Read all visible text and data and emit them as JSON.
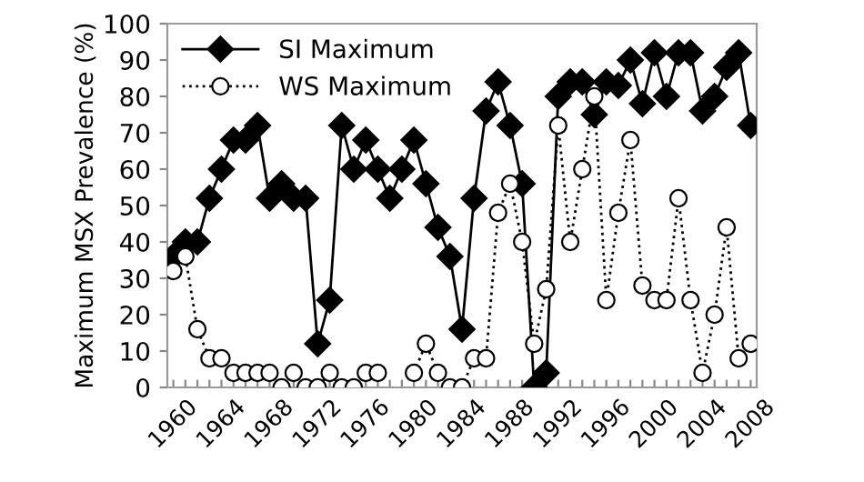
{
  "chart_data": {
    "type": "line",
    "ylabel": "Maximum MSX Prevalence (%)",
    "x": [
      1960,
      1961,
      1962,
      1963,
      1964,
      1965,
      1966,
      1967,
      1968,
      1969,
      1970,
      1971,
      1972,
      1973,
      1974,
      1975,
      1976,
      1977,
      1978,
      1979,
      1980,
      1981,
      1982,
      1983,
      1984,
      1985,
      1986,
      1987,
      1988,
      1989,
      1990,
      1991,
      1992,
      1993,
      1994,
      1995,
      1996,
      1997,
      1998,
      1999,
      2000,
      2001,
      2002,
      2003,
      2004,
      2005,
      2006,
      2007,
      2008
    ],
    "series": [
      {
        "name": "SI Maximum",
        "color": "#000000",
        "marker": "diamond",
        "line_style": "solid",
        "values": [
          36,
          40,
          40,
          52,
          60,
          68,
          68,
          72,
          52,
          56,
          52,
          52,
          12,
          24,
          72,
          60,
          68,
          60,
          52,
          60,
          68,
          56,
          44,
          36,
          16,
          52,
          76,
          84,
          72,
          56,
          0,
          4,
          80,
          84,
          84,
          75,
          84,
          83,
          90,
          78,
          92,
          80,
          92,
          92,
          76,
          80,
          88,
          92,
          72
        ]
      },
      {
        "name": "WS Maximum",
        "color": "#000000",
        "marker": "circle",
        "line_style": "dotted",
        "values": [
          32,
          36,
          16,
          8,
          8,
          4,
          4,
          4,
          4,
          0,
          4,
          0,
          0,
          4,
          0,
          0,
          4,
          4,
          null,
          null,
          4,
          12,
          4,
          0,
          0,
          8,
          8,
          48,
          56,
          40,
          12,
          27,
          72,
          40,
          60,
          80,
          24,
          48,
          68,
          28,
          24,
          24,
          52,
          24,
          4,
          20,
          44,
          8,
          12
        ]
      }
    ],
    "xlim": [
      1959.5,
      2008.5
    ],
    "xticks": [
      1960,
      {
        "value": 1961,
        "label": null
      },
      {
        "value": 1962,
        "label": null
      },
      {
        "value": 1963,
        "label": null
      },
      1964,
      {
        "value": 1965,
        "label": null
      },
      {
        "value": 1966,
        "label": null
      },
      {
        "value": 1967,
        "label": null
      },
      1968,
      {
        "value": 1969,
        "label": null
      },
      {
        "value": 1970,
        "label": null
      },
      {
        "value": 1971,
        "label": null
      },
      1972,
      {
        "value": 1973,
        "label": null
      },
      {
        "value": 1974,
        "label": null
      },
      {
        "value": 1975,
        "label": null
      },
      1976,
      {
        "value": 1977,
        "label": null
      },
      {
        "value": 1978,
        "label": null
      },
      {
        "value": 1979,
        "label": null
      },
      1980,
      {
        "value": 1981,
        "label": null
      },
      {
        "value": 1982,
        "label": null
      },
      {
        "value": 1983,
        "label": null
      },
      1984,
      {
        "value": 1985,
        "label": null
      },
      {
        "value": 1986,
        "label": null
      },
      {
        "value": 1987,
        "label": null
      },
      1988,
      {
        "value": 1989,
        "label": null
      },
      {
        "value": 1990,
        "label": null
      },
      {
        "value": 1991,
        "label": null
      },
      1992,
      {
        "value": 1993,
        "label": null
      },
      {
        "value": 1994,
        "label": null
      },
      {
        "value": 1995,
        "label": null
      },
      1996,
      {
        "value": 1997,
        "label": null
      },
      {
        "value": 1998,
        "label": null
      },
      {
        "value": 1999,
        "label": null
      },
      2000,
      {
        "value": 2001,
        "label": null
      },
      {
        "value": 2002,
        "label": null
      },
      {
        "value": 2003,
        "label": null
      },
      2004,
      {
        "value": 2005,
        "label": null
      },
      {
        "value": 2006,
        "label": null
      },
      {
        "value": 2007,
        "label": null
      },
      2008
    ],
    "ylim": [
      0,
      100
    ],
    "yticks": [
      0,
      10,
      20,
      30,
      40,
      50,
      60,
      70,
      80,
      90,
      100
    ],
    "grid": false,
    "legend": "top left"
  }
}
